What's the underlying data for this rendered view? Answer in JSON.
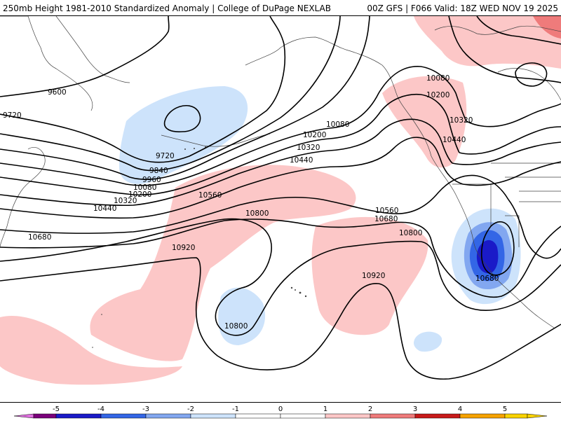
{
  "header": {
    "left": "250mb Height 1981-2010 Standardized Anomaly | College of DuPage NEXLAB",
    "right": "00Z GFS | F066 Valid: 18Z WED NOV 19 2025"
  },
  "contour_labels": [
    {
      "id": "9600",
      "text": "9600"
    },
    {
      "id": "9720-w",
      "text": "9720"
    },
    {
      "id": "9720-c",
      "text": "9720"
    },
    {
      "id": "9840",
      "text": "9840"
    },
    {
      "id": "9960",
      "text": "9960"
    },
    {
      "id": "10080-w",
      "text": "10080"
    },
    {
      "id": "10200-w",
      "text": "10200"
    },
    {
      "id": "10320-w",
      "text": "10320"
    },
    {
      "id": "10440-w",
      "text": "10440"
    },
    {
      "id": "10680-w",
      "text": "10680"
    },
    {
      "id": "10080-c",
      "text": "10080"
    },
    {
      "id": "10200-c",
      "text": "10200"
    },
    {
      "id": "10320-c",
      "text": "10320"
    },
    {
      "id": "10440-c",
      "text": "10440"
    },
    {
      "id": "10560-c",
      "text": "10560"
    },
    {
      "id": "10800-c",
      "text": "10800"
    },
    {
      "id": "10920-w",
      "text": "10920"
    },
    {
      "id": "10800-low",
      "text": "10800"
    },
    {
      "id": "10920-c",
      "text": "10920"
    },
    {
      "id": "10560-e",
      "text": "10560"
    },
    {
      "id": "10680-e",
      "text": "10680"
    },
    {
      "id": "10800-e",
      "text": "10800"
    },
    {
      "id": "10680-low",
      "text": "10680"
    },
    {
      "id": "10080-ne",
      "text": "10080"
    },
    {
      "id": "10200-ne",
      "text": "10200"
    },
    {
      "id": "10320-ne",
      "text": "10320"
    },
    {
      "id": "10440-ne",
      "text": "10440"
    }
  ],
  "colorbar": {
    "ticks": [
      "-5",
      "-4",
      "-3",
      "-2",
      "-1",
      "0",
      "1",
      "2",
      "3",
      "4",
      "5"
    ],
    "colors": [
      "#7b007b",
      "#1a1ac8",
      "#3366e6",
      "#82a7f0",
      "#cde3fb",
      "#ffffff",
      "#ffffff",
      "#fcc7c7",
      "#ef7b7b",
      "#c81a1a",
      "#f6a200",
      "#f9d200"
    ],
    "min_arrow_color": "#e070e0",
    "max_arrow_color": "#f9d200"
  },
  "colors": {
    "negative_light": "#cde3fb",
    "negative_mid": "#82a7f0",
    "negative_strong": "#3366e6",
    "negative_deep": "#1a1ac8",
    "positive_light": "#fcc7c7",
    "positive_mid": "#ef7b7b",
    "coastline": "#444444",
    "contour": "#000000"
  }
}
